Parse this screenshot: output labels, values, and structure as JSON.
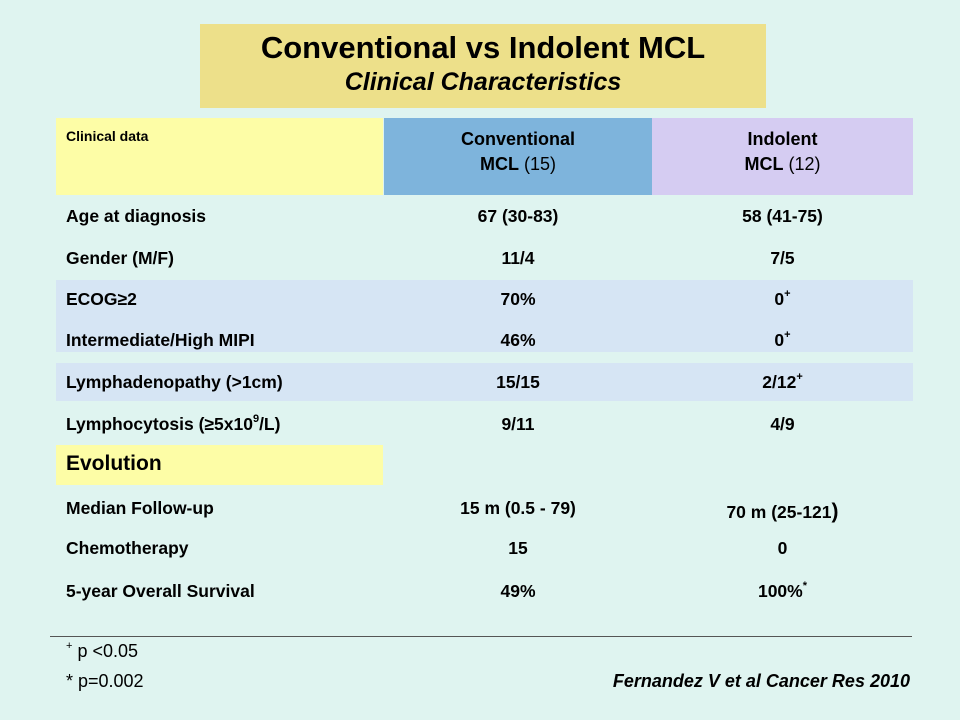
{
  "title": {
    "main": "Conventional vs Indolent MCL",
    "sub": "Clinical Characteristics"
  },
  "header": {
    "col1": "Clinical data",
    "col2_line1": "Conventional",
    "col2_line2_bold": "MCL",
    "col2_line2_count": "(15)",
    "col3_line1": "Indolent",
    "col3_line2_bold": "MCL",
    "col3_line2_count": "(12)"
  },
  "rows": [
    {
      "label": "Age at diagnosis",
      "conv": "67 (30-83)",
      "ind": "58 (41-75)"
    },
    {
      "label": "Gender (M/F)",
      "conv": "11/4",
      "ind": "7/5"
    },
    {
      "label": "ECOG≥2",
      "conv": "70%",
      "ind": "0",
      "ind_sup": "+"
    },
    {
      "label": "Intermediate/High MIPI",
      "conv": "46%",
      "ind": "0",
      "ind_sup": "+"
    },
    {
      "label": "Lymphadenopathy (>1cm)",
      "conv": "15/15",
      "ind": "2/12",
      "ind_sup": "+"
    },
    {
      "label_pre": "Lymphocytosis (≥5x10",
      "label_sup": "9",
      "label_post": "/L)",
      "conv": "9/11",
      "ind": "4/9"
    }
  ],
  "evolution": {
    "heading": "Evolution",
    "rows": [
      {
        "label": "Median Follow-up",
        "conv": "15 m (0.5 - 79)"
      },
      {
        "label": "Chemotherapy",
        "conv": "15",
        "ind": "0"
      },
      {
        "label": "5-year Overall Survival",
        "conv": "49%",
        "ind": "100%",
        "ind_sup": "*"
      }
    ],
    "followup_ind": "70 m (25-121",
    "followup_ind_paren": ")"
  },
  "footnotes": {
    "f1_sup": "+",
    "f1": " p <0.05",
    "f2": "* p=0.002"
  },
  "citation": "Fernandez V et al Cancer Res 2010",
  "colors": {
    "background": "#dff4f0",
    "title_box": "#ede08a",
    "header_left": "#fdfda6",
    "header_conventional": "#7eb4dc",
    "header_indolent": "#d5ccf2",
    "row_band": "#d6e5f4"
  }
}
